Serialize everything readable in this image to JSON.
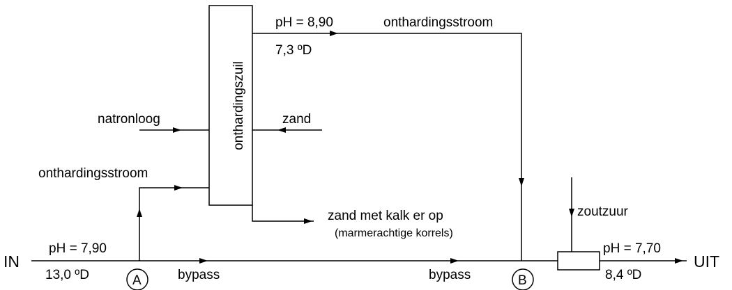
{
  "column": {
    "label": "onthardingszuil"
  },
  "top_stream": {
    "ph": "pH = 8,90",
    "hardness": "7,3 ºD",
    "label": "onthardingsstroom"
  },
  "inputs": {
    "natronloog": "natronloog",
    "zand": "zand",
    "onthardingsstroom": "onthardingsstroom"
  },
  "output_solid": {
    "label": "zand met kalk er op",
    "note": "(marmerachtige korrels)"
  },
  "inlet": {
    "label": "IN",
    "ph": "pH = 7,90",
    "hardness": "13,0 ºD"
  },
  "outlet": {
    "label": "UIT",
    "ph": "pH = 7,70",
    "hardness": "8,4 ºD"
  },
  "acid": {
    "label": "zoutzuur"
  },
  "bypass": [
    "bypass",
    "bypass"
  ],
  "points": [
    "A",
    "B"
  ]
}
